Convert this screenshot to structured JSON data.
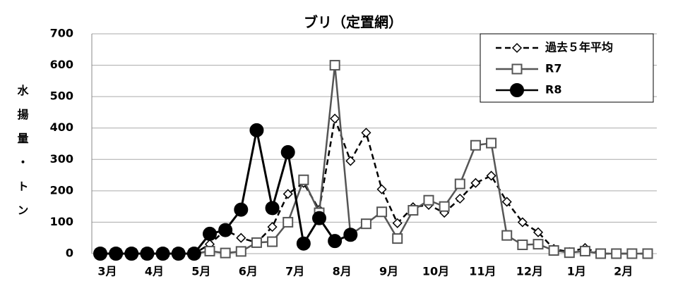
{
  "chart_data": {
    "type": "line",
    "title": "ブリ（定置網）",
    "y_label": "水揚量・トン",
    "categories": [
      "3月",
      null,
      null,
      "4月",
      null,
      null,
      "5月",
      null,
      null,
      "6月",
      null,
      null,
      "7月",
      null,
      null,
      "8月",
      null,
      null,
      "9月",
      null,
      null,
      "10月",
      null,
      null,
      "11月",
      null,
      null,
      "12月",
      null,
      null,
      "1月",
      null,
      null,
      "2月",
      null,
      null
    ],
    "series": [
      {
        "name": "過去５年平均",
        "color": "#000000",
        "style": "dashed",
        "marker": "diamond",
        "values": [
          0,
          0,
          0,
          0,
          0,
          0,
          0,
          30,
          75,
          50,
          35,
          85,
          190,
          225,
          140,
          430,
          295,
          385,
          205,
          97,
          148,
          155,
          130,
          175,
          225,
          248,
          165,
          100,
          68,
          15,
          5,
          18,
          0,
          0,
          0,
          0
        ]
      },
      {
        "name": "R7",
        "color": "#555555",
        "style": "solid",
        "marker": "square",
        "values": [
          0,
          0,
          0,
          0,
          0,
          0,
          0,
          8,
          2,
          7,
          35,
          38,
          100,
          235,
          130,
          600,
          60,
          95,
          133,
          48,
          138,
          170,
          150,
          222,
          345,
          352,
          58,
          28,
          30,
          10,
          3,
          8,
          0,
          0,
          0,
          0
        ]
      },
      {
        "name": "R8",
        "color": "#000000",
        "style": "solid",
        "marker": "circle",
        "values": [
          0,
          0,
          0,
          0,
          0,
          0,
          0,
          63,
          75,
          140,
          393,
          145,
          323,
          32,
          113,
          40,
          60,
          null,
          null,
          null,
          null,
          null,
          null,
          null,
          null,
          null,
          null,
          null,
          null,
          null,
          null,
          null,
          null,
          null,
          null,
          null
        ]
      }
    ],
    "ylim": [
      0,
      700
    ],
    "yticks": [
      0,
      100,
      200,
      300,
      400,
      500,
      600,
      700
    ],
    "grid": true,
    "legend": "top-right"
  }
}
